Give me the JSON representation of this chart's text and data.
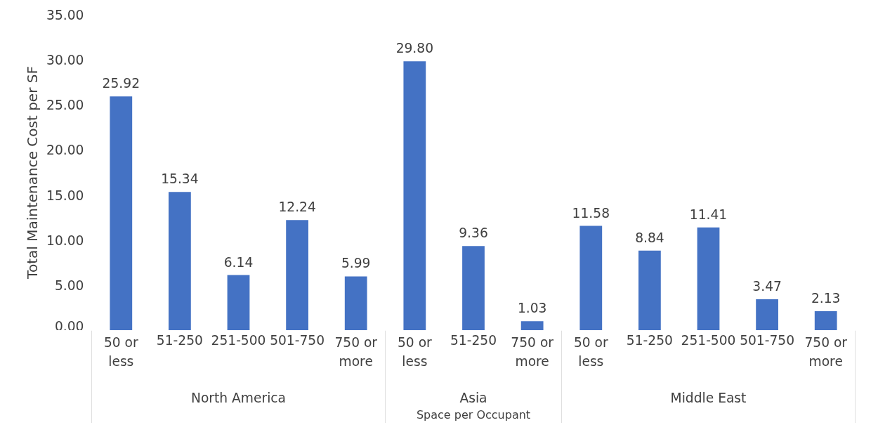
{
  "chart_data": [
    {
      "type": "bar",
      "xlabel": "North America",
      "ylabel": "Total Maintenance Cost per SF",
      "categories": [
        "50 or less",
        "51-250",
        "251-500",
        "501-750",
        "750 or more"
      ],
      "values": [
        25.92,
        15.34,
        6.14,
        12.24,
        5.99
      ],
      "value_labels": [
        "25.92",
        "15.34",
        "6.14",
        "12.24",
        "5.99"
      ],
      "color": "#4472c4",
      "ylim": [
        0,
        35
      ],
      "yticks": [
        {
          "value": 0,
          "label": "0.00"
        },
        {
          "value": 5,
          "label": "5.00"
        },
        {
          "value": 10,
          "label": "10.00"
        },
        {
          "value": 15,
          "label": "15.00"
        },
        {
          "value": 20,
          "label": "20.00"
        },
        {
          "value": 25,
          "label": "25.00"
        },
        {
          "value": 30,
          "label": "30.00"
        },
        {
          "value": 35,
          "label": "35.00"
        }
      ]
    },
    {
      "type": "bar",
      "xlabel": "Asia",
      "annotations": [
        "Space per Occupant"
      ],
      "categories": [
        "50 or less",
        "51-250",
        "750 or more"
      ],
      "values": [
        29.8,
        9.36,
        1.03
      ],
      "value_labels": [
        "29.80",
        "9.36",
        "1.03"
      ],
      "color": "#4472c4",
      "ylim": [
        0,
        35
      ],
      "tick_labels": "x"
    },
    {
      "type": "bar",
      "xlabel": "Middle East",
      "categories": [
        "50 or less",
        "51-250",
        "251-500",
        "501-750",
        "750 or more"
      ],
      "values": [
        11.58,
        8.84,
        11.41,
        3.47,
        2.13
      ],
      "value_labels": [
        "11.58",
        "8.84",
        "11.41",
        "3.47",
        "2.13"
      ],
      "color": "#4472c4",
      "ylim": [
        0,
        35
      ],
      "tick_labels": "x"
    }
  ]
}
